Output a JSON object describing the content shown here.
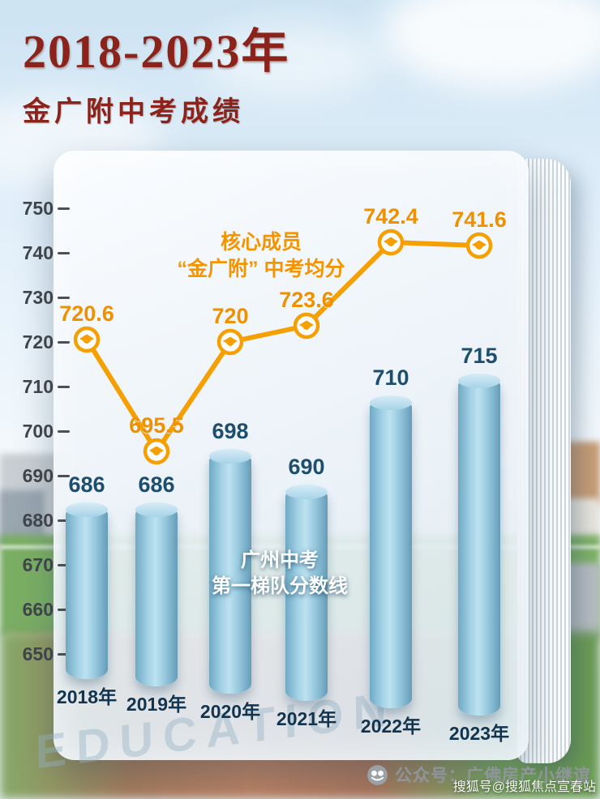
{
  "header": {
    "title": "2018-2023年",
    "subtitle": "金广附中考成绩"
  },
  "chart_data": {
    "type": "bar",
    "title": "2018-2023年金广附中考成绩",
    "categories": [
      "2018年",
      "2019年",
      "2020年",
      "2021年",
      "2022年",
      "2023年"
    ],
    "series": [
      {
        "name": "广州中考第一梯队分数线",
        "type": "bar",
        "values": [
          686,
          686,
          698,
          690,
          710,
          715
        ]
      },
      {
        "name": "核心成员“金广附”中考均分",
        "type": "line",
        "values": [
          720.6,
          695.5,
          720,
          723.6,
          742.4,
          741.6
        ]
      }
    ],
    "ylim": [
      650,
      755
    ],
    "yticks": [
      750,
      740,
      730,
      720,
      710,
      700,
      690,
      680,
      670,
      660,
      650
    ],
    "grid": false,
    "legend_position": "inline-annotations",
    "marker": "graduation-cap"
  },
  "annotations": {
    "line_series_label": [
      "核心成员",
      "“金广附” 中考均分"
    ],
    "bar_series_label": [
      "广州中考",
      "第一梯队分数线"
    ]
  },
  "watermarks": {
    "book": "EDUCATION",
    "bottom_right": "搜狐号@搜狐焦点宣春站"
  },
  "footer": {
    "account": "公众号：广佛房产小继谊"
  },
  "colors": {
    "accent_orange": "#F59F00",
    "bar_fill": "#8FC4DC",
    "title_maroon": "#8C231B",
    "value_navy": "#1D4E6E",
    "axis_text": "#3E4449"
  }
}
